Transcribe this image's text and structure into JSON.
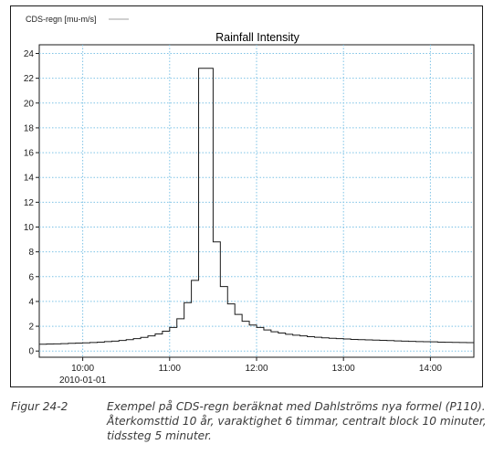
{
  "chart_data": {
    "type": "line",
    "step": true,
    "title": "Rainfall Intensity",
    "legend": {
      "label": "CDS-regn [mu-m/s]",
      "placement": "top-left",
      "color": "#a0a0a0"
    },
    "series_color": "#1a1a1a",
    "grid": {
      "on": true,
      "style": "dotted",
      "color": "#7ec3e6"
    },
    "ylim": [
      -0.5,
      24.7
    ],
    "yticks": [
      0,
      2,
      4,
      6,
      8,
      10,
      12,
      14,
      16,
      18,
      20,
      22,
      24
    ],
    "xlim_minutes": [
      570,
      870
    ],
    "xticks": [
      {
        "minute": 600,
        "label": "10:00",
        "sublabel": "2010-01-01"
      },
      {
        "minute": 660,
        "label": "11:00"
      },
      {
        "minute": 720,
        "label": "12:00"
      },
      {
        "minute": 780,
        "label": "13:00"
      },
      {
        "minute": 840,
        "label": "14:00"
      }
    ],
    "x_start_minute": 570,
    "step_minutes": 5,
    "values": [
      0.55,
      0.57,
      0.58,
      0.6,
      0.62,
      0.64,
      0.66,
      0.69,
      0.72,
      0.76,
      0.8,
      0.85,
      0.92,
      1.0,
      1.1,
      1.22,
      1.38,
      1.6,
      1.9,
      2.6,
      3.9,
      5.7,
      22.8,
      22.8,
      8.8,
      5.2,
      3.8,
      2.95,
      2.4,
      2.1,
      1.9,
      1.7,
      1.55,
      1.45,
      1.35,
      1.28,
      1.22,
      1.16,
      1.11,
      1.07,
      1.03,
      1.0,
      0.97,
      0.94,
      0.92,
      0.9,
      0.88,
      0.86,
      0.84,
      0.82,
      0.8,
      0.78,
      0.76,
      0.75,
      0.74,
      0.72,
      0.71,
      0.7,
      0.69,
      0.68
    ]
  },
  "caption": {
    "number": "Figur 24-2",
    "text": "Exempel på CDS-regn beräknat med Dahlströms nya formel (P110). Återkomsttid 10 år, varaktighet 6 timmar, centralt block 10 minuter, tidssteg 5 minuter."
  }
}
